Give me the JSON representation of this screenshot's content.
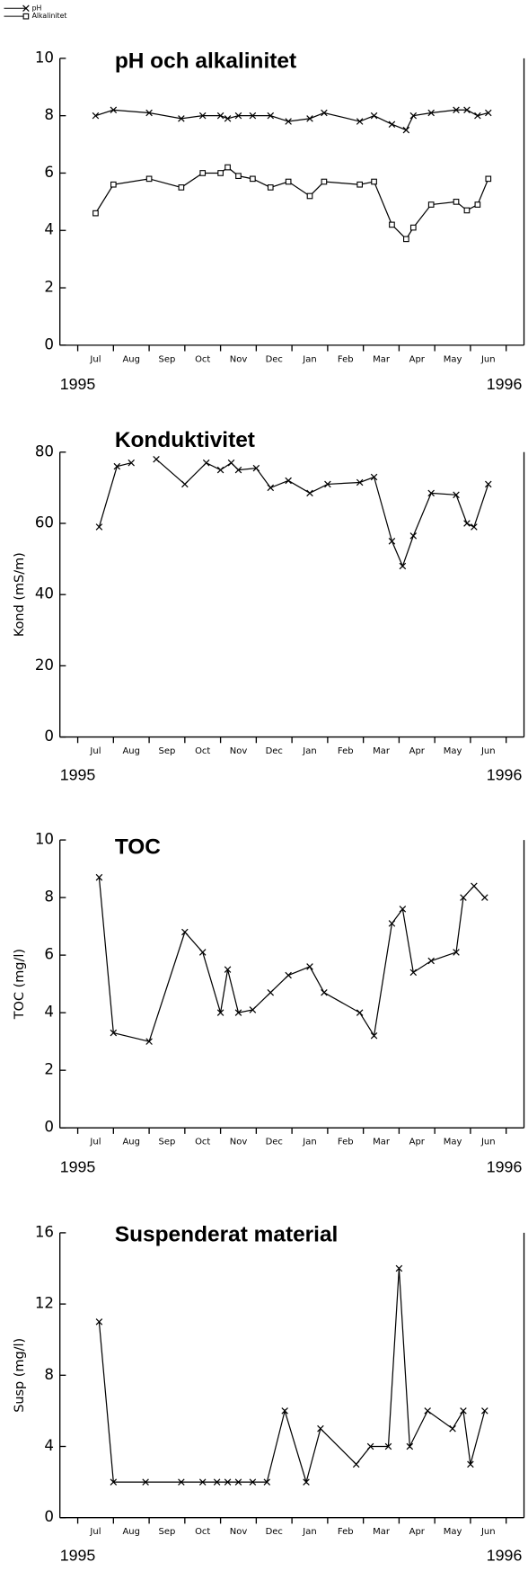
{
  "chart_data": [
    {
      "type": "line",
      "title": "pH och alkalinitet",
      "year_labels": [
        "1995",
        "1996"
      ],
      "x": [
        0.5,
        1.0,
        2.0,
        2.9,
        3.5,
        4.0,
        4.2,
        4.5,
        4.9,
        5.4,
        5.9,
        6.5,
        6.9,
        7.9,
        8.3,
        8.8,
        9.2,
        9.4,
        9.9,
        10.6,
        10.9,
        11.2,
        11.5
      ],
      "series": [
        {
          "name": "pH",
          "color": "#000000",
          "marker": "x",
          "values": [
            8.0,
            8.2,
            8.1,
            7.9,
            8.0,
            8.0,
            7.9,
            8.0,
            8.0,
            8.0,
            7.8,
            7.9,
            8.1,
            7.8,
            8.0,
            7.7,
            7.5,
            8.0,
            8.1,
            8.2,
            8.2,
            8.0,
            8.1
          ]
        },
        {
          "name": "Alkalinitet",
          "color": "#000000",
          "marker": "square",
          "values": [
            4.6,
            5.6,
            5.8,
            5.5,
            6.0,
            6.0,
            6.2,
            5.9,
            5.8,
            5.5,
            5.7,
            5.2,
            5.7,
            5.6,
            5.7,
            4.2,
            3.7,
            4.1,
            4.9,
            5.0,
            4.7,
            4.9,
            5.8
          ]
        }
      ],
      "xlim": [
        -0.5,
        12.5
      ],
      "xticks": [
        {
          "value": 0.5,
          "label": "Jul"
        },
        {
          "value": 1.5,
          "label": "Aug"
        },
        {
          "value": 2.5,
          "label": "Sep"
        },
        {
          "value": 3.5,
          "label": "Oct"
        },
        {
          "value": 4.5,
          "label": "Nov"
        },
        {
          "value": 5.5,
          "label": "Dec"
        },
        {
          "value": 6.5,
          "label": "Jan"
        },
        {
          "value": 7.5,
          "label": "Feb"
        },
        {
          "value": 8.5,
          "label": "Mar"
        },
        {
          "value": 9.5,
          "label": "Apr"
        },
        {
          "value": 10.5,
          "label": "May"
        },
        {
          "value": 11.5,
          "label": "Jun"
        }
      ],
      "ylim": [
        0,
        10
      ],
      "yticks": [
        0,
        2,
        4,
        6,
        8,
        10
      ],
      "legend": "upper left"
    },
    {
      "type": "line",
      "title": "Konduktivitet",
      "ylabel": "Kond (mS/m)",
      "year_labels": [
        "1995",
        "1996"
      ],
      "x": [
        0.6,
        1.1,
        1.5,
        1.8,
        2.2,
        3.0,
        3.6,
        4.0,
        4.3,
        4.5,
        5.0,
        5.4,
        5.9,
        6.5,
        7.0,
        7.9,
        8.3,
        8.8,
        9.1,
        9.4,
        9.9,
        10.6,
        10.9,
        11.1,
        11.5
      ],
      "series": [
        {
          "name": "Kond",
          "color": "#000000",
          "marker": "x",
          "values": [
            59,
            76,
            77,
            null,
            78,
            71,
            77,
            75,
            77,
            75,
            75.5,
            70,
            72,
            68.5,
            71,
            71.5,
            73,
            55,
            48,
            56.5,
            68.5,
            68,
            60,
            59,
            71
          ]
        }
      ],
      "xlim": [
        -0.5,
        12.5
      ],
      "xticks": [
        {
          "value": 0.5,
          "label": "Jul"
        },
        {
          "value": 1.5,
          "label": "Aug"
        },
        {
          "value": 2.5,
          "label": "Sep"
        },
        {
          "value": 3.5,
          "label": "Oct"
        },
        {
          "value": 4.5,
          "label": "Nov"
        },
        {
          "value": 5.5,
          "label": "Dec"
        },
        {
          "value": 6.5,
          "label": "Jan"
        },
        {
          "value": 7.5,
          "label": "Feb"
        },
        {
          "value": 8.5,
          "label": "Mar"
        },
        {
          "value": 9.5,
          "label": "Apr"
        },
        {
          "value": 10.5,
          "label": "May"
        },
        {
          "value": 11.5,
          "label": "Jun"
        }
      ],
      "ylim": [
        0,
        80
      ],
      "yticks": [
        0,
        20,
        40,
        60,
        80
      ]
    },
    {
      "type": "line",
      "title": "TOC",
      "ylabel": "TOC (mg/l)",
      "year_labels": [
        "1995",
        "1996"
      ],
      "x": [
        0.6,
        1.0,
        2.0,
        3.0,
        3.5,
        4.0,
        4.2,
        4.5,
        4.9,
        5.4,
        5.9,
        6.5,
        6.9,
        7.9,
        8.3,
        8.8,
        9.1,
        9.4,
        9.9,
        10.6,
        10.8,
        11.1,
        11.4
      ],
      "series": [
        {
          "name": "TOC",
          "color": "#000000",
          "marker": "x",
          "values": [
            8.7,
            3.3,
            3.0,
            6.8,
            6.1,
            4.0,
            5.5,
            4.0,
            4.1,
            4.7,
            5.3,
            5.6,
            4.7,
            4.0,
            3.2,
            7.1,
            7.6,
            5.4,
            5.8,
            6.1,
            8.0,
            8.4,
            8.0
          ]
        }
      ],
      "xlim": [
        -0.5,
        12.5
      ],
      "xticks": [
        {
          "value": 0.5,
          "label": "Jul"
        },
        {
          "value": 1.5,
          "label": "Aug"
        },
        {
          "value": 2.5,
          "label": "Sep"
        },
        {
          "value": 3.5,
          "label": "Oct"
        },
        {
          "value": 4.5,
          "label": "Nov"
        },
        {
          "value": 5.5,
          "label": "Dec"
        },
        {
          "value": 6.5,
          "label": "Jan"
        },
        {
          "value": 7.5,
          "label": "Feb"
        },
        {
          "value": 8.5,
          "label": "Mar"
        },
        {
          "value": 9.5,
          "label": "Apr"
        },
        {
          "value": 10.5,
          "label": "May"
        },
        {
          "value": 11.5,
          "label": "Jun"
        }
      ],
      "ylim": [
        0,
        10
      ],
      "yticks": [
        0,
        2,
        4,
        6,
        8,
        10
      ]
    },
    {
      "type": "line",
      "title": "Suspenderat material",
      "ylabel": "Susp (mg/l)",
      "year_labels": [
        "1995",
        "1996"
      ],
      "x": [
        0.6,
        1.0,
        1.9,
        2.9,
        3.5,
        3.9,
        4.2,
        4.5,
        4.9,
        5.3,
        5.8,
        6.4,
        6.8,
        7.8,
        8.2,
        8.7,
        9.0,
        9.3,
        9.8,
        10.5,
        10.8,
        11.0,
        11.4
      ],
      "series": [
        {
          "name": "Susp",
          "color": "#000000",
          "marker": "x",
          "values": [
            11,
            2,
            2,
            2,
            2,
            2,
            2,
            2,
            2,
            2,
            6,
            2,
            5,
            3,
            4,
            4,
            14,
            4,
            6,
            5,
            6,
            3,
            6
          ]
        }
      ],
      "xlim": [
        -0.5,
        12.5
      ],
      "xticks": [
        {
          "value": 0.5,
          "label": "Jul"
        },
        {
          "value": 1.5,
          "label": "Aug"
        },
        {
          "value": 2.5,
          "label": "Sep"
        },
        {
          "value": 3.5,
          "label": "Oct"
        },
        {
          "value": 4.5,
          "label": "Nov"
        },
        {
          "value": 5.5,
          "label": "Dec"
        },
        {
          "value": 6.5,
          "label": "Jan"
        },
        {
          "value": 7.5,
          "label": "Feb"
        },
        {
          "value": 8.5,
          "label": "Mar"
        },
        {
          "value": 9.5,
          "label": "Apr"
        },
        {
          "value": 10.5,
          "label": "May"
        },
        {
          "value": 11.5,
          "label": "Jun"
        }
      ],
      "ylim": [
        0,
        16
      ],
      "yticks": [
        0,
        4,
        8,
        12,
        16
      ]
    }
  ]
}
